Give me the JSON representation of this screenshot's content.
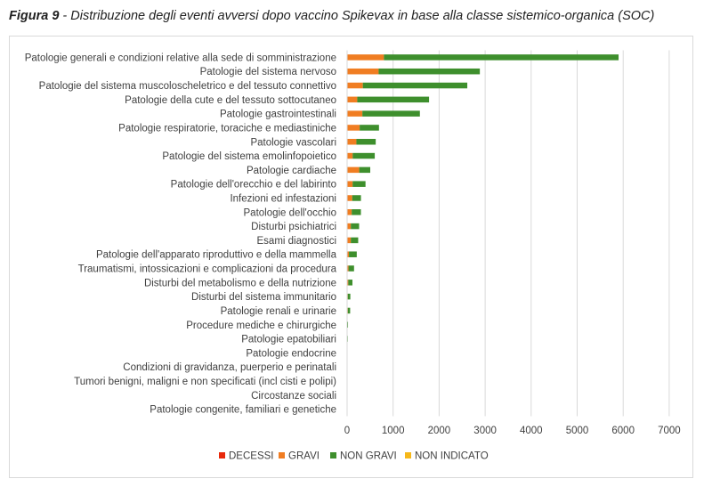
{
  "caption": {
    "label": "Figura 9",
    "text": " - Distribuzione degli eventi avversi dopo vaccino Spikevax in base alla classe sistemico-organica (SOC)"
  },
  "colors": {
    "DECESSI": "#e8290b",
    "GRAVI": "#f07d22",
    "NON GRAVI": "#3e8f2d",
    "NON INDICATO": "#f6b81a",
    "grid": "#d9d9d9",
    "text": "#3f3f3f"
  },
  "chart_data": {
    "type": "bar",
    "orientation": "horizontal",
    "stacked": true,
    "title": "",
    "xlabel": "",
    "ylabel": "",
    "xlim": [
      0,
      7000
    ],
    "xticks": [
      0,
      1000,
      2000,
      3000,
      4000,
      5000,
      6000,
      7000
    ],
    "grid": true,
    "legend_position": "bottom",
    "categories": [
      "Patologie generali e condizioni relative alla sede di somministrazione",
      "Patologie del sistema nervoso",
      "Patologie del sistema muscoloscheletrico e del tessuto connettivo",
      "Patologie della cute e del tessuto sottocutaneo",
      "Patologie gastrointestinali",
      "Patologie respiratorie, toraciche e mediastiniche",
      "Patologie vascolari",
      "Patologie del sistema emolinfopoietico",
      "Patologie cardiache",
      "Patologie dell'orecchio e del labirinto",
      "Infezioni ed infestazioni",
      "Patologie dell'occhio",
      "Disturbi psichiatrici",
      "Esami diagnostici",
      "Patologie dell'apparato riproduttivo e della mammella",
      "Traumatismi, intossicazioni e complicazioni da procedura",
      "Disturbi del metabolismo e della nutrizione",
      "Disturbi del sistema immunitario",
      "Patologie renali e urinarie",
      "Procedure mediche e chirurgiche",
      "Patologie epatobiliari",
      "Patologie endocrine",
      "Condizioni di gravidanza, puerperio e perinatali",
      "Tumori benigni, maligni e non specificati (incl cisti e polipi)",
      "Circostanze sociali",
      "Patologie congenite, familiari e genetiche"
    ],
    "series": [
      {
        "name": "DECESSI",
        "values": [
          10,
          5,
          2,
          1,
          2,
          3,
          2,
          1,
          3,
          0,
          1,
          0,
          1,
          1,
          0,
          1,
          1,
          0,
          1,
          0,
          0,
          0,
          0,
          0,
          0,
          0
        ]
      },
      {
        "name": "GRAVI",
        "values": [
          790,
          680,
          340,
          220,
          330,
          270,
          200,
          120,
          260,
          120,
          110,
          100,
          80,
          80,
          40,
          30,
          25,
          15,
          15,
          5,
          5,
          3,
          2,
          2,
          1,
          1
        ]
      },
      {
        "name": "NON GRAVI",
        "values": [
          5100,
          2200,
          2270,
          1560,
          1250,
          420,
          420,
          480,
          240,
          280,
          190,
          200,
          180,
          160,
          170,
          120,
          90,
          55,
          50,
          15,
          10,
          5,
          3,
          3,
          2,
          1
        ]
      },
      {
        "name": "NON INDICATO",
        "values": [
          0,
          0,
          0,
          0,
          0,
          0,
          0,
          0,
          0,
          0,
          0,
          0,
          0,
          0,
          0,
          0,
          0,
          0,
          0,
          0,
          0,
          0,
          0,
          0,
          0,
          0
        ]
      }
    ]
  }
}
